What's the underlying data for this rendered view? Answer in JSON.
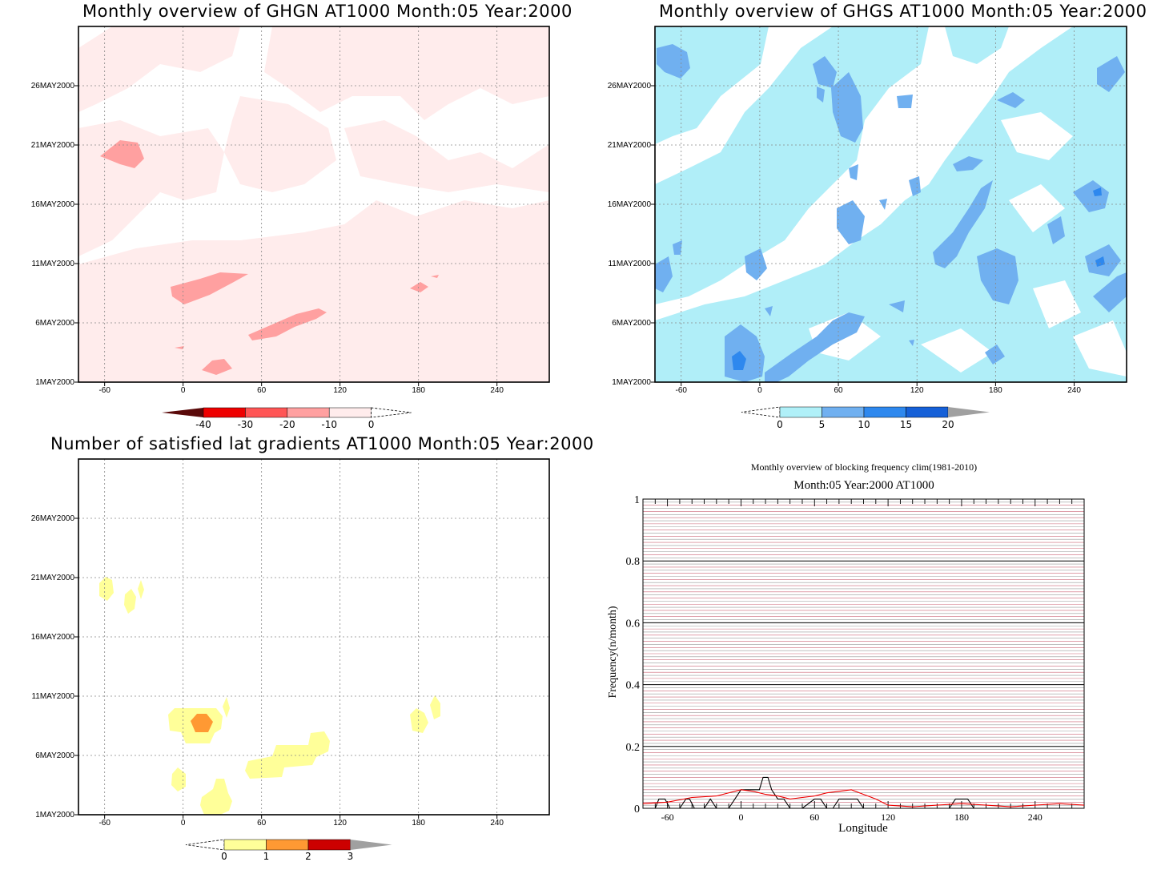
{
  "panel1": {
    "title": "Monthly overview of GHGN AT1000 Month:05 Year:2000",
    "xticks": [
      "-60",
      "0",
      "60",
      "120",
      "180",
      "240"
    ],
    "yticks": [
      "1MAY2000",
      "6MAY2000",
      "11MAY2000",
      "16MAY2000",
      "21MAY2000",
      "26MAY2000"
    ],
    "colorbar": {
      "labels": [
        "-40",
        "-30",
        "-20",
        "-10",
        "0"
      ],
      "colors": [
        "#5a0a0a",
        "#ee0000",
        "#ff5555",
        "#ffa0a0",
        "#ffecec"
      ]
    },
    "fill_light": "#ffecec",
    "fill_mid": "#ffa0a0"
  },
  "panel2": {
    "title": "Monthly overview of GHGS AT1000 Month:05 Year:2000",
    "xticks": [
      "-60",
      "0",
      "60",
      "120",
      "180",
      "240"
    ],
    "yticks": [
      "1MAY2000",
      "6MAY2000",
      "11MAY2000",
      "16MAY2000",
      "21MAY2000",
      "26MAY2000"
    ],
    "colorbar": {
      "labels": [
        "0",
        "5",
        "10",
        "15",
        "20"
      ],
      "colors": [
        "#b0f0f8",
        "#70b0f0",
        "#2e88ee",
        "#1560d8",
        "#a0a0a0"
      ]
    },
    "fill_light": "#b0eef8",
    "fill_mid": "#70b0f0",
    "fill_dark": "#2e88ee"
  },
  "panel3": {
    "title": "Number of satisfied lat gradients AT1000 Month:05 Year:2000",
    "xticks": [
      "-60",
      "0",
      "60",
      "120",
      "180",
      "240"
    ],
    "yticks": [
      "1MAY2000",
      "6MAY2000",
      "11MAY2000",
      "16MAY2000",
      "21MAY2000",
      "26MAY2000"
    ],
    "colorbar": {
      "labels": [
        "0",
        "1",
        "2",
        "3"
      ],
      "colors": [
        "#ffff99",
        "#ff9933",
        "#cc0000",
        "#a0a0a0"
      ]
    },
    "fill_yellow": "#ffff99",
    "fill_orange": "#ff9933"
  },
  "panel4": {
    "title1": "Monthly overview of blocking frequency clim(1981-2010)",
    "title2": "Month:05 Year:2000  AT1000",
    "xlabel": "Longitude",
    "ylabel": "Frequency(n/month)",
    "xticks": [
      "-60",
      "0",
      "60",
      "120",
      "180",
      "240"
    ],
    "yticks": [
      "0",
      "0.2",
      "0.4",
      "0.6",
      "0.8",
      "1"
    ]
  },
  "chart_data": [
    {
      "type": "heatmap",
      "title": "Monthly overview of GHGN AT1000 Month:05 Year:2000",
      "x_range": [
        -80,
        280
      ],
      "y_categories": [
        "1MAY2000",
        "6MAY2000",
        "11MAY2000",
        "16MAY2000",
        "21MAY2000",
        "26MAY2000"
      ],
      "levels": [
        -40,
        -30,
        -20,
        -10,
        0
      ]
    },
    {
      "type": "heatmap",
      "title": "Monthly overview of GHGS AT1000 Month:05 Year:2000",
      "x_range": [
        -80,
        280
      ],
      "y_categories": [
        "1MAY2000",
        "6MAY2000",
        "11MAY2000",
        "16MAY2000",
        "21MAY2000",
        "26MAY2000"
      ],
      "levels": [
        0,
        5,
        10,
        15,
        20
      ]
    },
    {
      "type": "heatmap",
      "title": "Number of satisfied lat gradients AT1000 Month:05 Year:2000",
      "x_range": [
        -80,
        280
      ],
      "y_categories": [
        "1MAY2000",
        "6MAY2000",
        "11MAY2000",
        "16MAY2000",
        "21MAY2000",
        "26MAY2000"
      ],
      "levels": [
        0,
        1,
        2,
        3
      ]
    },
    {
      "type": "line",
      "title": "Monthly overview of blocking frequency clim(1981-2010)",
      "xlabel": "Longitude",
      "ylabel": "Frequency(n/month)",
      "xlim": [
        -80,
        280
      ],
      "ylim": [
        0,
        1
      ],
      "series": [
        {
          "color": "#000000",
          "x": [
            -80,
            -70,
            -67,
            -62,
            -58,
            -55,
            -50,
            -45,
            -42,
            -38,
            -30,
            -25,
            -20,
            -10,
            -5,
            0,
            5,
            10,
            15,
            18,
            22,
            25,
            30,
            35,
            40,
            45,
            50,
            60,
            65,
            70,
            75,
            80,
            90,
            95,
            100,
            105,
            110,
            120,
            130,
            140,
            150,
            160,
            170,
            175,
            180,
            185,
            190,
            195,
            200,
            210,
            220,
            240,
            260,
            270,
            280
          ],
          "y": [
            0,
            0,
            0.03,
            0.03,
            0,
            0,
            0,
            0.03,
            0.03,
            0,
            0,
            0.03,
            0,
            0,
            0.03,
            0.06,
            0.06,
            0.06,
            0.06,
            0.1,
            0.1,
            0.06,
            0.03,
            0.03,
            0,
            0,
            0,
            0.03,
            0.03,
            0,
            0,
            0.03,
            0.03,
            0.03,
            0,
            0,
            0,
            0,
            0,
            0,
            0,
            0,
            0,
            0.03,
            0.03,
            0.03,
            0,
            0,
            0,
            0,
            0,
            0,
            0,
            0,
            0
          ]
        },
        {
          "color": "#ee0000",
          "x": [
            -80,
            -60,
            -40,
            -20,
            0,
            10,
            20,
            30,
            40,
            50,
            60,
            70,
            80,
            90,
            100,
            110,
            120,
            140,
            160,
            180,
            200,
            220,
            240,
            260,
            280
          ],
          "y": [
            0.015,
            0.02,
            0.035,
            0.04,
            0.06,
            0.055,
            0.045,
            0.04,
            0.03,
            0.035,
            0.04,
            0.05,
            0.055,
            0.06,
            0.045,
            0.03,
            0.01,
            0.005,
            0.01,
            0.015,
            0.01,
            0.005,
            0.01,
            0.015,
            0.01
          ]
        }
      ]
    }
  ]
}
